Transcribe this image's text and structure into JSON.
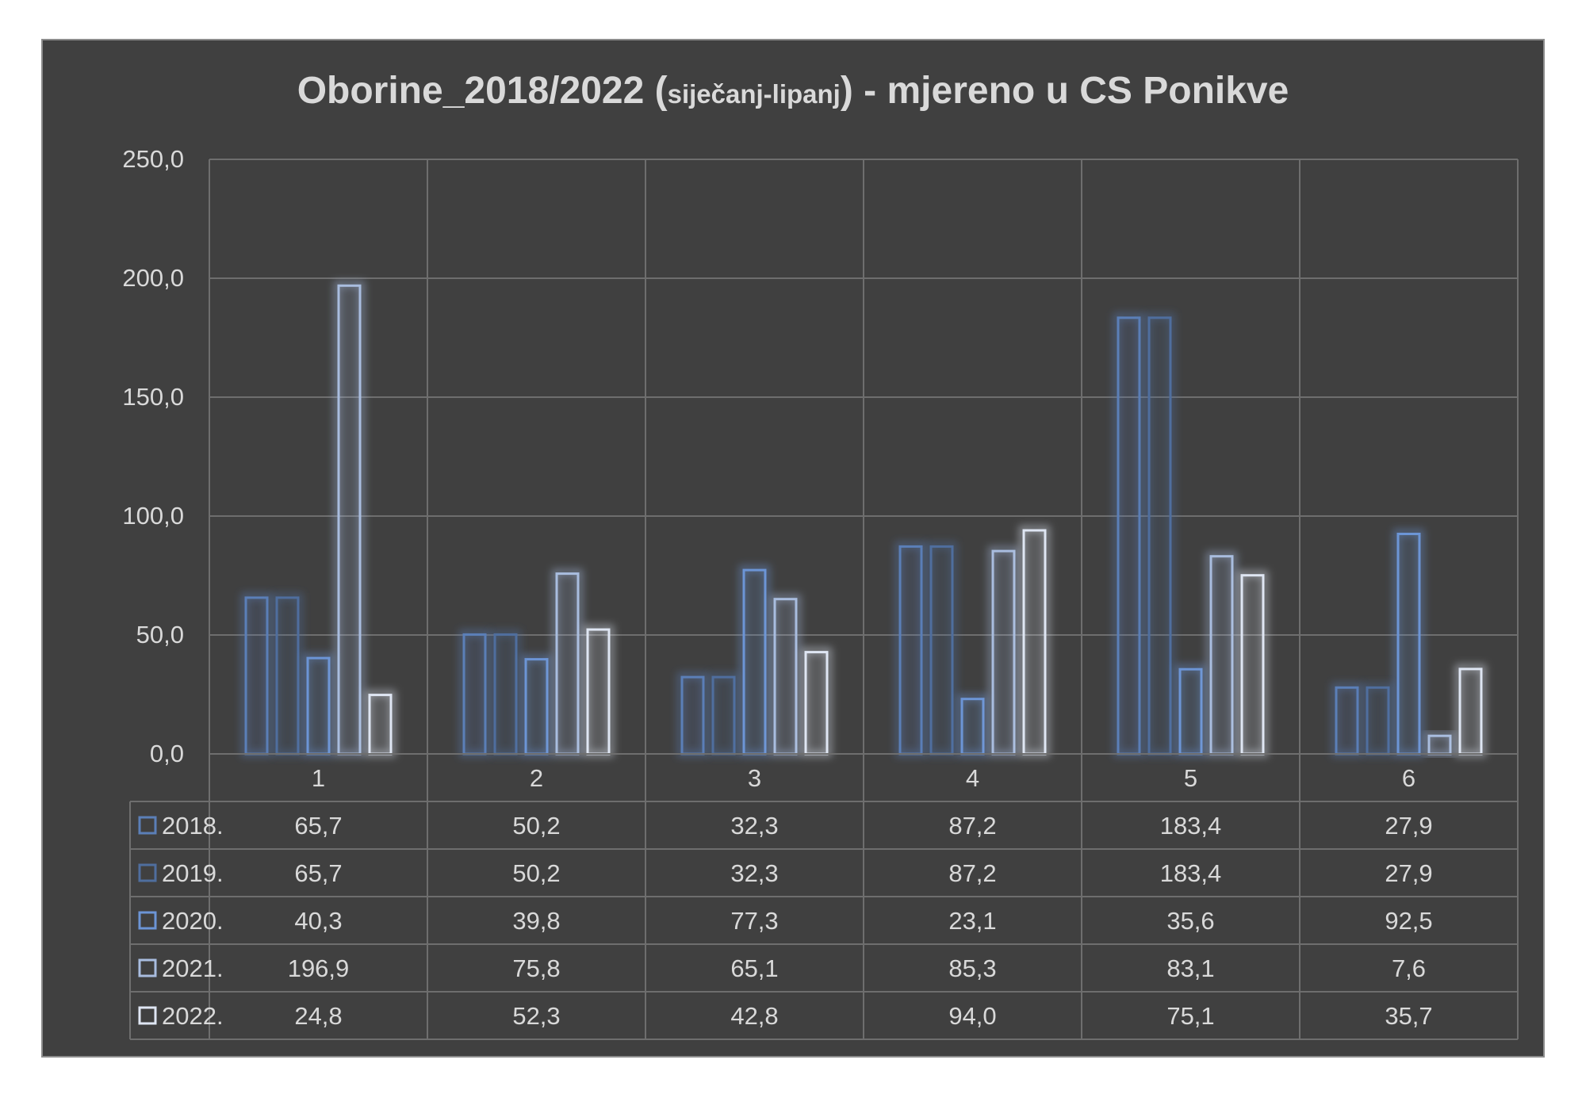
{
  "title": {
    "main": "Oborine_2018/2022 (",
    "sub": "siječanj-lipanj",
    "tail": ") - mjereno u CS Ponikve"
  },
  "chart_data": {
    "type": "bar",
    "categories": [
      "1",
      "2",
      "3",
      "4",
      "5",
      "6"
    ],
    "series": [
      {
        "name": "2018.",
        "values": [
          65.7,
          50.2,
          32.3,
          87.2,
          183.4,
          27.9
        ],
        "value_labels": [
          "65,7",
          "50,2",
          "32,3",
          "87,2",
          "183,4",
          "27,9"
        ],
        "color": "#5b7fb8"
      },
      {
        "name": "2019.",
        "values": [
          65.7,
          50.2,
          32.3,
          87.2,
          183.4,
          27.9
        ],
        "value_labels": [
          "65,7",
          "50,2",
          "32,3",
          "87,2",
          "183,4",
          "27,9"
        ],
        "color": "#4f6e9e"
      },
      {
        "name": "2020.",
        "values": [
          40.3,
          39.8,
          77.3,
          23.1,
          35.6,
          92.5
        ],
        "value_labels": [
          "40,3",
          "39,8",
          "77,3",
          "23,1",
          "35,6",
          "92,5"
        ],
        "color": "#6c95d6"
      },
      {
        "name": "2021.",
        "values": [
          196.9,
          75.8,
          65.1,
          85.3,
          83.1,
          7.6
        ],
        "value_labels": [
          "196,9",
          "75,8",
          "65,1",
          "85,3",
          "83,1",
          "7,6"
        ],
        "color": "#a9bddf"
      },
      {
        "name": "2022.",
        "values": [
          24.8,
          52.3,
          42.8,
          94.0,
          75.1,
          35.7
        ],
        "value_labels": [
          "24,8",
          "52,3",
          "42,8",
          "94,0",
          "75,1",
          "35,7"
        ],
        "color": "#dfe6f3"
      }
    ],
    "yticks": [
      0,
      50,
      100,
      150,
      200,
      250
    ],
    "ytick_labels": [
      "0,0",
      "50,0",
      "100,0",
      "150,0",
      "200,0",
      "250,0"
    ],
    "ylim": [
      0,
      250
    ],
    "grid": true,
    "legend": "data-table"
  }
}
